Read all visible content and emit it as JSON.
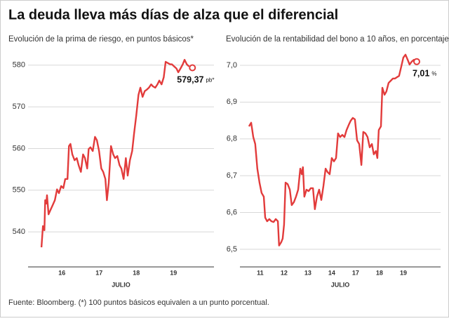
{
  "title": "La deuda lleva más días de alza que el diferencial",
  "source": "Fuente: Bloomberg. (*) 100 puntos básicos equivalen a un punto porcentual.",
  "chart_data": [
    {
      "type": "line",
      "subtitle": "Evolución de la prima de riesgo, en puntos básicos*",
      "x_label": "JULIO",
      "color": "#e23b3b",
      "grid": true,
      "xlim": [
        15.09,
        20.09
      ],
      "xticks": [
        16,
        17,
        18,
        19
      ],
      "ylim": [
        531.6,
        583.5
      ],
      "yticks": [
        540,
        550,
        560,
        570,
        580
      ],
      "x": [
        15.45,
        15.49,
        15.53,
        15.55,
        15.58,
        15.6,
        15.64,
        15.7,
        15.75,
        15.81,
        15.87,
        15.92,
        15.98,
        16.04,
        16.09,
        16.15,
        16.19,
        16.23,
        16.28,
        16.34,
        16.4,
        16.45,
        16.51,
        16.57,
        16.62,
        16.68,
        16.72,
        16.77,
        16.83,
        16.89,
        16.94,
        17.0,
        17.06,
        17.11,
        17.17,
        17.21,
        17.26,
        17.32,
        17.38,
        17.43,
        17.49,
        17.55,
        17.6,
        17.66,
        17.72,
        17.77,
        17.83,
        17.89,
        17.94,
        18.0,
        18.06,
        18.11,
        18.17,
        18.23,
        18.28,
        18.34,
        18.4,
        18.45,
        18.51,
        18.57,
        18.62,
        18.68,
        18.74,
        18.79,
        18.85,
        18.91,
        18.96,
        19.02,
        19.08,
        19.13,
        19.19,
        19.25,
        19.3,
        19.36,
        19.42
      ],
      "values": [
        536.3,
        541.4,
        540.4,
        547.6,
        546.8,
        548.8,
        544.2,
        545.4,
        546.4,
        547.6,
        550.2,
        549.3,
        551,
        550.5,
        552.7,
        552.7,
        560.6,
        561.1,
        558.6,
        557.2,
        557.7,
        556,
        554.4,
        558.6,
        557.7,
        555.2,
        559.9,
        560.3,
        559.4,
        562.8,
        562,
        559.4,
        555.2,
        554.4,
        552.7,
        547.6,
        551.8,
        560.6,
        558.6,
        557.7,
        558.2,
        556,
        555.2,
        552.7,
        557.7,
        553.5,
        557.2,
        559.4,
        563.6,
        567.9,
        572.9,
        574.6,
        572.4,
        573.8,
        574.1,
        574.6,
        575.4,
        574.9,
        574.6,
        575.4,
        576.3,
        575.4,
        577.1,
        580.8,
        580.5,
        580.2,
        580.2,
        579.7,
        579.2,
        578.3,
        579.2,
        580.2,
        581.3,
        580.2,
        579.7
      ],
      "end_marker": {
        "x": 19.51,
        "y": 579.37,
        "label": "579,37",
        "unit": "pb*"
      }
    },
    {
      "type": "line",
      "subtitle": "Evolución de la rentabilidad del bono a 10 años, en porcentaje",
      "x_label": "JULIO",
      "color": "#e23b3b",
      "grid": true,
      "xlim": [
        -0.85,
        7.56
      ],
      "xticks": [
        {
          "value": 0,
          "label": "11"
        },
        {
          "value": 1,
          "label": "12"
        },
        {
          "value": 2,
          "label": "13"
        },
        {
          "value": 3,
          "label": "14"
        },
        {
          "value": 4,
          "label": "17"
        },
        {
          "value": 5,
          "label": "18"
        },
        {
          "value": 6,
          "label": "19"
        }
      ],
      "ylim": [
        6.452,
        7.04
      ],
      "yticks": [
        {
          "value": 6.5,
          "label": "6,5"
        },
        {
          "value": 6.6,
          "label": "6,6"
        },
        {
          "value": 6.7,
          "label": "6,7"
        },
        {
          "value": 6.8,
          "label": "6,8"
        },
        {
          "value": 6.9,
          "label": "6,9"
        },
        {
          "value": 7.0,
          "label": "7,0"
        }
      ],
      "x": [
        -0.47,
        -0.38,
        -0.29,
        -0.21,
        -0.12,
        -0.03,
        0.06,
        0.15,
        0.21,
        0.29,
        0.38,
        0.47,
        0.56,
        0.65,
        0.74,
        0.79,
        0.88,
        0.94,
        1.0,
        1.06,
        1.15,
        1.24,
        1.32,
        1.41,
        1.5,
        1.59,
        1.68,
        1.74,
        1.79,
        1.85,
        1.94,
        2.03,
        2.12,
        2.21,
        2.29,
        2.38,
        2.47,
        2.56,
        2.65,
        2.74,
        2.82,
        2.91,
        3.0,
        3.09,
        3.18,
        3.26,
        3.35,
        3.44,
        3.53,
        3.62,
        3.71,
        3.79,
        3.88,
        3.97,
        4.06,
        4.15,
        4.24,
        4.32,
        4.41,
        4.5,
        4.59,
        4.68,
        4.76,
        4.85,
        4.91,
        4.97,
        5.06,
        5.12,
        5.21,
        5.29,
        5.38,
        5.47,
        5.56,
        5.65,
        5.74,
        5.82,
        5.91,
        6.0,
        6.09,
        6.18,
        6.26,
        6.35,
        6.44,
        6.53
      ],
      "values": [
        6.834,
        6.844,
        6.805,
        6.786,
        6.719,
        6.681,
        6.653,
        6.643,
        6.586,
        6.576,
        6.582,
        6.576,
        6.574,
        6.582,
        6.576,
        6.51,
        6.519,
        6.529,
        6.567,
        6.681,
        6.677,
        6.662,
        6.62,
        6.628,
        6.643,
        6.662,
        6.719,
        6.704,
        6.723,
        6.643,
        6.662,
        6.658,
        6.666,
        6.666,
        6.609,
        6.643,
        6.662,
        6.634,
        6.672,
        6.719,
        6.71,
        6.704,
        6.748,
        6.739,
        6.748,
        6.815,
        6.805,
        6.811,
        6.805,
        6.824,
        6.838,
        6.849,
        6.857,
        6.853,
        6.796,
        6.786,
        6.729,
        6.819,
        6.815,
        6.805,
        6.777,
        6.786,
        6.758,
        6.767,
        6.748,
        6.824,
        6.834,
        6.939,
        6.92,
        6.929,
        6.952,
        6.958,
        6.964,
        6.964,
        6.968,
        6.971,
        6.996,
        7.021,
        7.029,
        7.015,
        7.002,
        7.01,
        7.015,
        7.002
      ],
      "end_marker": {
        "x": 6.56,
        "y": 7.01,
        "label": "7,01",
        "unit": "%"
      }
    }
  ]
}
